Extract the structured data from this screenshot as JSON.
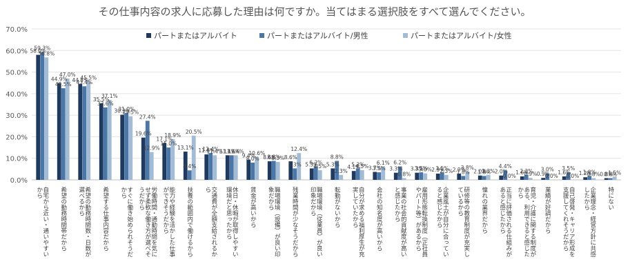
{
  "chart_data": {
    "type": "bar",
    "title": "その仕事内容の求人に応募した理由は何ですか。当てはまる選択肢をすべて選んでください。",
    "xlabel": "",
    "ylabel": "",
    "ylim": [
      0,
      70
    ],
    "y_ticks": [
      "0.0%",
      "10.0%",
      "20.0%",
      "30.0%",
      "40.0%",
      "50.0%",
      "60.0%",
      "70.0%"
    ],
    "grid": true,
    "legend_position": "top",
    "colors": [
      "#1f3a5f",
      "#4b77a8",
      "#a3bcd6"
    ],
    "categories": [
      "自宅から近い・通いやすいから",
      "希望の勤務時間帯だから",
      "希望の勤務時間数・日数が選べるから",
      "希望する仕事内容だから",
      "すぐに働き始められそうだから",
      "労働時間・通勤時間を気にせず柔軟な働き方が選べそうだから",
      "能力や経験を活かした仕事ができそうだから",
      "扶養の範囲内で働けるから",
      "交通費が全額支給されるから",
      "休日・休暇が取得しやすい環境だと思ったから",
      "賃金が高いから",
      "職場環境（設備）が良い印象だから",
      "残業時間が少なそうだから",
      "職場環境（従業員）が良い印象だから",
      "転勤がないから",
      "自分が求める福利厚生が充実していたから",
      "会社の知名度が高いから",
      "事業の社会的貢献度が高いと感じたから",
      "雇用形態転換制度（正社員やパート等）があるから",
      "企業風土が自分に合っていると感じたから",
      "研修等の教育制度が充実しているから",
      "憧れの業界だから",
      "正当に評価される仕組みがあると感じたから",
      "育児・介護に関する制度がある、利用できると感じたから",
      "業績が好調だから",
      "自己啓発・キャリア形成を支援してくれそうだから",
      "企業理念・経営方針に共感したから",
      "特にない"
    ],
    "series": [
      {
        "name": "パートまたはアルバイト",
        "values": [
          58.0,
          44.9,
          44.5,
          35.5,
          30.2,
          19.6,
          17.1,
          13.1,
          11.8,
          11.4,
          9.4,
          8.6,
          8.6,
          5.3,
          5.3,
          4.1,
          3.7,
          3.3,
          3.3,
          2.9,
          2.9,
          2.0,
          2.0,
          1.6,
          0.9,
          1.6,
          1.2,
          0.8
        ]
      },
      {
        "name": "パートまたはアルバイト/男性",
        "values": [
          59.3,
          42.5,
          43.4,
          33.6,
          31.0,
          27.4,
          15.0,
          4.4,
          12.4,
          11.4,
          8.0,
          8.8,
          5.3,
          6.2,
          8.8,
          5.3,
          3.5,
          6.2,
          3.5,
          3.5,
          1.8,
          1.8,
          4.4,
          2.3,
          3.0,
          3.5,
          1.8,
          0.8
        ]
      },
      {
        "name": "パートまたはアルバイト/女性",
        "values": [
          56.8,
          47.0,
          45.5,
          37.1,
          29.5,
          12.9,
          18.9,
          20.5,
          11.4,
          11.4,
          10.6,
          8.3,
          12.4,
          4.5,
          2.3,
          4.5,
          6.1,
          0.8,
          3.0,
          2.3,
          3.8,
          2.3,
          0.0,
          0.9,
          0.0,
          0.0,
          0.8,
          1.5
        ]
      }
    ]
  }
}
